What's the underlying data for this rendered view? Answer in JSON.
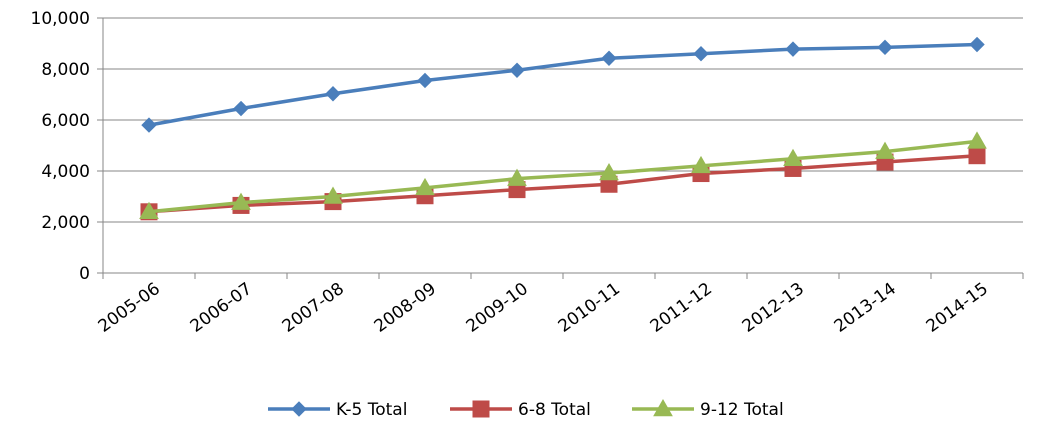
{
  "chart_data": {
    "type": "line",
    "title": "",
    "xlabel": "",
    "ylabel": "",
    "categories": [
      "2005-06",
      "2006-07",
      "2007-08",
      "2008-09",
      "2009-10",
      "2010-11",
      "2011-12",
      "2012-13",
      "2013-14",
      "2014-15"
    ],
    "ylim": [
      0,
      10000
    ],
    "yticks": [
      0,
      2000,
      4000,
      6000,
      8000,
      10000
    ],
    "ytick_labels": [
      "0",
      "2,000",
      "4,000",
      "6,000",
      "8,000",
      "10,000"
    ],
    "grid": true,
    "legend_position": "bottom",
    "series": [
      {
        "name": "K-5 Total",
        "color": "#4a7ebb",
        "marker": "diamond",
        "values": [
          5800,
          6450,
          7030,
          7550,
          7950,
          8420,
          8600,
          8780,
          8850,
          8960
        ]
      },
      {
        "name": "6-8 Total",
        "color": "#be4b48",
        "marker": "square",
        "values": [
          2400,
          2650,
          2800,
          3030,
          3270,
          3480,
          3900,
          4100,
          4350,
          4600
        ]
      },
      {
        "name": "9-12 Total",
        "color": "#98b954",
        "marker": "triangle",
        "values": [
          2400,
          2760,
          3000,
          3340,
          3700,
          3920,
          4200,
          4480,
          4760,
          5160
        ]
      }
    ]
  }
}
